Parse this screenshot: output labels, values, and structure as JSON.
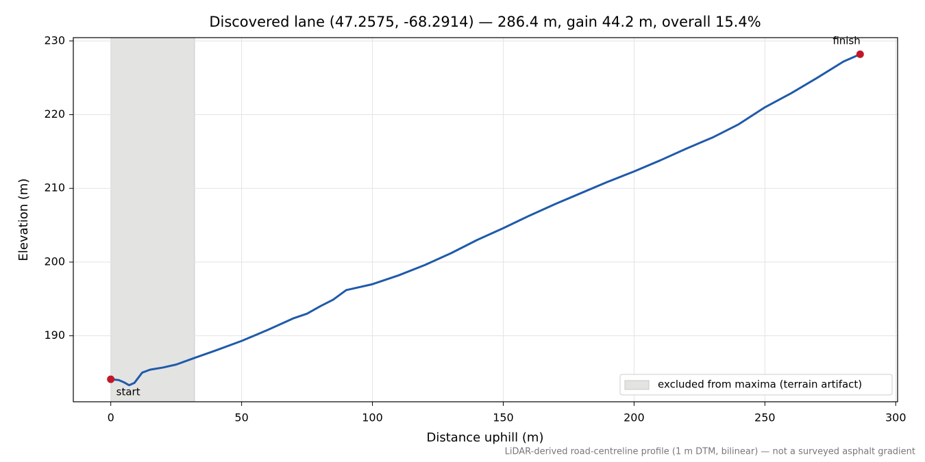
{
  "chart_data": {
    "type": "line",
    "title": "Discovered lane (47.2575, -68.2914) — 286.4 m, gain 44.2 m, overall 15.4%",
    "xlabel": "Distance uphill (m)",
    "ylabel": "Elevation (m)",
    "footnote": "LiDAR-derived road-centreline profile (1 m DTM, bilinear) — not a surveyed asphalt gradient",
    "x": [
      0,
      3,
      5,
      7,
      9,
      12,
      15,
      20,
      25,
      32,
      40,
      50,
      60,
      70,
      75,
      80,
      85,
      90,
      100,
      110,
      120,
      130,
      140,
      150,
      160,
      170,
      180,
      190,
      200,
      210,
      220,
      230,
      240,
      250,
      260,
      270,
      280,
      286.4
    ],
    "values": [
      184.1,
      184.0,
      183.7,
      183.3,
      183.6,
      185.0,
      185.4,
      185.7,
      186.1,
      187.0,
      188.0,
      189.3,
      190.8,
      192.4,
      193.0,
      194.0,
      194.9,
      196.2,
      197.0,
      198.2,
      199.6,
      201.2,
      203.0,
      204.6,
      206.3,
      207.9,
      209.4,
      210.9,
      212.3,
      213.8,
      215.4,
      216.9,
      218.7,
      221.0,
      222.9,
      225.0,
      227.2,
      228.2
    ],
    "color": "#1f5aaa",
    "span": {
      "label": "excluded from maxima (terrain artifact)",
      "x": [
        0,
        32
      ],
      "color": "#e3e3e2"
    },
    "annotations": [
      {
        "text": "start",
        "x": 0,
        "y": 184.1
      },
      {
        "text": "finish",
        "x": 286.4,
        "y": 228.2
      }
    ],
    "marker_color": "#c0182a",
    "xlim": [
      -14.32,
      300.72
    ],
    "ylim": [
      181.05,
      230.45
    ],
    "xticks": [
      0,
      50,
      100,
      150,
      200,
      250,
      300
    ],
    "yticks": [
      190,
      200,
      210,
      220,
      230
    ],
    "grid": true,
    "legend": "lower right"
  }
}
